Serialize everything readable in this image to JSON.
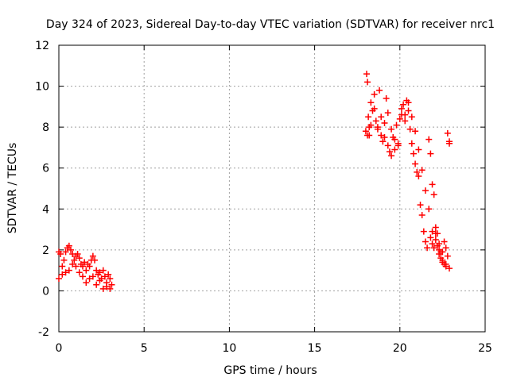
{
  "chart_data": {
    "type": "scatter",
    "title": "Day 324 of 2023, Sidereal Day-to-day VTEC variation (SDTVAR) for receiver nrc1",
    "xlabel": "GPS time / hours",
    "ylabel": "SDTVAR / TECUs",
    "xlim": [
      0,
      25
    ],
    "ylim": [
      -2,
      12
    ],
    "xticks": [
      0,
      5,
      10,
      15,
      20,
      25
    ],
    "yticks": [
      -2,
      0,
      2,
      4,
      6,
      8,
      10,
      12
    ],
    "grid": true,
    "marker": "+",
    "series": [
      {
        "name": "SDTVAR",
        "color": "#ff0000",
        "x": [
          0.0,
          0.1,
          0.2,
          0.3,
          0.4,
          0.5,
          0.6,
          0.7,
          0.8,
          0.9,
          1.0,
          1.1,
          1.2,
          1.3,
          1.4,
          1.5,
          1.6,
          1.7,
          1.8,
          1.9,
          2.0,
          2.1,
          2.2,
          2.3,
          2.4,
          2.5,
          2.6,
          2.7,
          2.8,
          2.9,
          3.0,
          3.1,
          0.0,
          0.2,
          0.4,
          0.6,
          0.8,
          1.0,
          1.2,
          1.4,
          1.6,
          1.8,
          2.0,
          2.2,
          2.4,
          2.6,
          2.8,
          3.0,
          18.0,
          18.05,
          18.1,
          18.15,
          18.2,
          18.3,
          18.4,
          18.5,
          18.6,
          18.7,
          18.8,
          18.9,
          19.0,
          19.1,
          19.2,
          19.3,
          19.4,
          19.5,
          19.6,
          19.7,
          19.8,
          19.9,
          20.0,
          20.1,
          20.2,
          20.3,
          20.4,
          20.5,
          20.6,
          20.7,
          20.8,
          20.9,
          21.0,
          21.1,
          21.2,
          21.3,
          21.4,
          21.5,
          21.6,
          21.7,
          21.8,
          21.9,
          22.0,
          22.1,
          22.2,
          22.3,
          22.4,
          22.5,
          22.6,
          22.7,
          22.8,
          22.9,
          18.1,
          18.2,
          18.3,
          18.5,
          18.7,
          18.9,
          19.1,
          19.3,
          19.5,
          19.7,
          19.9,
          20.1,
          20.3,
          20.5,
          20.7,
          20.9,
          21.1,
          21.3,
          21.5,
          21.7,
          21.9,
          22.1,
          22.3,
          22.5,
          22.7,
          22.9,
          21.8,
          21.9,
          22.0,
          22.1,
          22.2,
          22.3,
          22.4,
          22.5,
          22.6,
          22.7,
          22.8,
          22.9
        ],
        "y": [
          1.9,
          1.8,
          1.2,
          1.5,
          1.9,
          2.1,
          2.2,
          2.0,
          1.8,
          1.5,
          1.7,
          1.8,
          1.6,
          1.3,
          1.2,
          1.4,
          1.0,
          1.3,
          1.2,
          1.5,
          1.7,
          1.5,
          1.0,
          0.8,
          0.9,
          0.6,
          1.0,
          0.7,
          0.4,
          0.8,
          0.6,
          0.3,
          0.6,
          0.8,
          0.9,
          1.0,
          1.3,
          1.2,
          0.9,
          0.7,
          0.4,
          0.6,
          0.7,
          0.3,
          0.5,
          0.1,
          0.2,
          0.1,
          7.8,
          10.6,
          10.2,
          8.5,
          7.6,
          8.1,
          8.8,
          9.6,
          8.3,
          7.9,
          9.8,
          8.5,
          7.3,
          8.2,
          9.4,
          7.1,
          6.8,
          6.6,
          7.5,
          7.4,
          8.1,
          7.2,
          8.4,
          8.9,
          9.1,
          8.6,
          9.3,
          8.8,
          7.9,
          7.2,
          6.7,
          6.2,
          5.8,
          5.6,
          4.2,
          3.7,
          2.9,
          2.4,
          2.1,
          7.4,
          2.6,
          2.3,
          2.1,
          2.8,
          2.2,
          1.8,
          1.6,
          1.9,
          2.4,
          2.1,
          1.7,
          7.2,
          7.6,
          8.0,
          9.2,
          8.9,
          8.0,
          7.6,
          7.5,
          8.7,
          7.9,
          6.9,
          7.1,
          8.6,
          8.3,
          9.2,
          8.5,
          7.8,
          6.9,
          5.9,
          4.9,
          4.0,
          2.9,
          2.5,
          2.0,
          1.5,
          1.3,
          1.1,
          6.7,
          5.2,
          4.7,
          3.1,
          2.8,
          2.3,
          1.9,
          1.4,
          1.3,
          1.2,
          7.7,
          7.3
        ]
      }
    ]
  }
}
